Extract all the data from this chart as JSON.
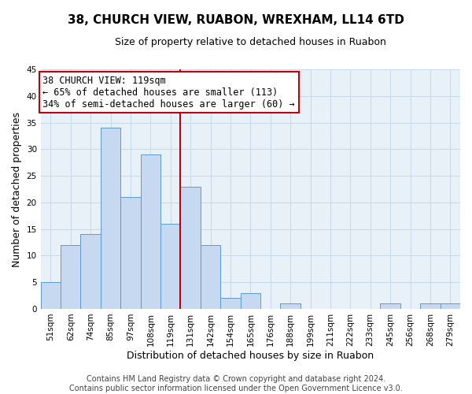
{
  "title": "38, CHURCH VIEW, RUABON, WREXHAM, LL14 6TD",
  "subtitle": "Size of property relative to detached houses in Ruabon",
  "xlabel": "Distribution of detached houses by size in Ruabon",
  "ylabel": "Number of detached properties",
  "categories": [
    "51sqm",
    "62sqm",
    "74sqm",
    "85sqm",
    "97sqm",
    "108sqm",
    "119sqm",
    "131sqm",
    "142sqm",
    "154sqm",
    "165sqm",
    "176sqm",
    "188sqm",
    "199sqm",
    "211sqm",
    "222sqm",
    "233sqm",
    "245sqm",
    "256sqm",
    "268sqm",
    "279sqm"
  ],
  "values": [
    5,
    12,
    14,
    34,
    21,
    29,
    16,
    23,
    12,
    2,
    3,
    0,
    1,
    0,
    0,
    0,
    0,
    1,
    0,
    1,
    1
  ],
  "bar_color": "#c6d9f1",
  "bar_edge_color": "#5b9bd5",
  "highlight_index": 6,
  "highlight_line_color": "#c0000a",
  "ylim": [
    0,
    45
  ],
  "yticks": [
    0,
    5,
    10,
    15,
    20,
    25,
    30,
    35,
    40,
    45
  ],
  "annotation_title": "38 CHURCH VIEW: 119sqm",
  "annotation_line1": "← 65% of detached houses are smaller (113)",
  "annotation_line2": "34% of semi-detached houses are larger (60) →",
  "annotation_box_edge": "#c0000a",
  "footer_line1": "Contains HM Land Registry data © Crown copyright and database right 2024.",
  "footer_line2": "Contains public sector information licensed under the Open Government Licence v3.0.",
  "background_color": "#ffffff",
  "grid_color": "#c8d8e8",
  "title_fontsize": 11,
  "subtitle_fontsize": 9,
  "axis_label_fontsize": 9,
  "tick_fontsize": 7.5,
  "footer_fontsize": 7,
  "ann_fontsize": 8.5
}
